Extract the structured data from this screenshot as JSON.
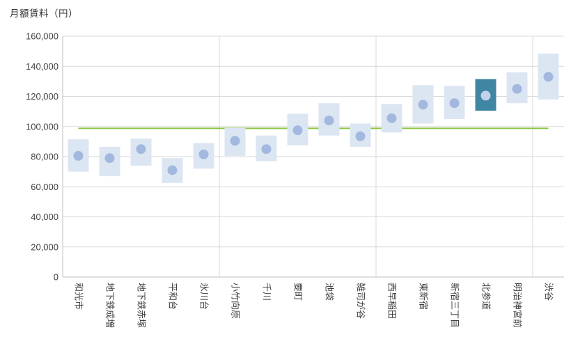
{
  "title": "月額賃料（円）",
  "chart_data": {
    "type": "range_bar",
    "title": "月額賃料（円）",
    "ylabel": "月額賃料（円）",
    "xlabel": "",
    "ylim": [
      0,
      160000
    ],
    "ytick_step": 20000,
    "ytick_labels": [
      "0",
      "20,000",
      "40,000",
      "60,000",
      "80,000",
      "100,000",
      "120,000",
      "140,000",
      "160,000"
    ],
    "grid": true,
    "legend": "none",
    "categories": [
      "和光市",
      "地下鉄成増",
      "地下鉄赤塚",
      "平和台",
      "氷川台",
      "小竹向原",
      "千川",
      "要町",
      "池袋",
      "雑司が谷",
      "西早稲田",
      "東新宿",
      "新宿三丁目",
      "北参道",
      "明治神宮前",
      "渋谷"
    ],
    "stations": [
      {
        "name": "和光市",
        "min": 70000,
        "max": 91500,
        "avg": 80500,
        "highlight": false
      },
      {
        "name": "地下鉄成増",
        "min": 67000,
        "max": 86500,
        "avg": 79000,
        "highlight": false
      },
      {
        "name": "地下鉄赤塚",
        "min": 74000,
        "max": 92000,
        "avg": 85000,
        "highlight": false
      },
      {
        "name": "平和台",
        "min": 62500,
        "max": 79000,
        "avg": 71000,
        "highlight": false
      },
      {
        "name": "氷川台",
        "min": 72000,
        "max": 89000,
        "avg": 81500,
        "highlight": false
      },
      {
        "name": "小竹向原",
        "min": 80500,
        "max": 99000,
        "avg": 90500,
        "highlight": false
      },
      {
        "name": "千川",
        "min": 77000,
        "max": 94000,
        "avg": 85000,
        "highlight": false
      },
      {
        "name": "要町",
        "min": 87500,
        "max": 108500,
        "avg": 97500,
        "highlight": false
      },
      {
        "name": "池袋",
        "min": 94000,
        "max": 115500,
        "avg": 104000,
        "highlight": false
      },
      {
        "name": "雑司が谷",
        "min": 86500,
        "max": 102000,
        "avg": 93500,
        "highlight": false
      },
      {
        "name": "西早稲田",
        "min": 96000,
        "max": 115000,
        "avg": 105500,
        "highlight": false
      },
      {
        "name": "東新宿",
        "min": 102000,
        "max": 127500,
        "avg": 114500,
        "highlight": false
      },
      {
        "name": "新宿三丁目",
        "min": 105000,
        "max": 127000,
        "avg": 115500,
        "highlight": false
      },
      {
        "name": "北参道",
        "min": 110500,
        "max": 131500,
        "avg": 120500,
        "highlight": true
      },
      {
        "name": "明治神宮前",
        "min": 115500,
        "max": 136000,
        "avg": 125000,
        "highlight": false
      },
      {
        "name": "渋谷",
        "min": 118000,
        "max": 148500,
        "avg": 133000,
        "highlight": false
      }
    ],
    "highlighted_category": "北参道",
    "reference_line": {
      "value": 98800,
      "color": "#8CC540"
    },
    "group_separators_after": [
      "氷川台",
      "雑司が谷",
      "明治神宮前"
    ],
    "colors": {
      "range_box": "#DCE6F2",
      "range_box_highlight": "#3F86A2",
      "mean_dot": "#A3B8DF",
      "mean_dot_on_highlight": "#C3D1ED",
      "reference_line": "#8CC540",
      "gridline": "#D9D9D9",
      "axis_line": "#BFBFBF",
      "label_text": "#404040"
    }
  }
}
